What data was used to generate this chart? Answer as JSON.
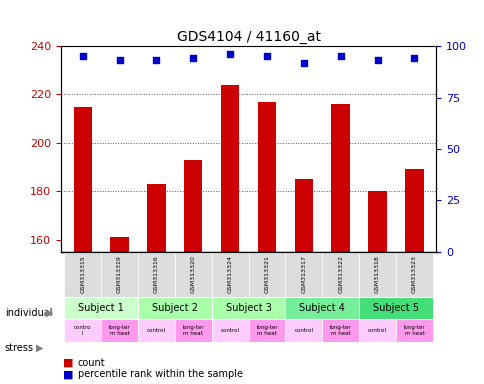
{
  "title": "GDS4104 / 41160_at",
  "samples": [
    "GSM313315",
    "GSM313319",
    "GSM313316",
    "GSM313320",
    "GSM313324",
    "GSM313321",
    "GSM313317",
    "GSM313322",
    "GSM313318",
    "GSM313323"
  ],
  "counts": [
    215,
    161,
    183,
    193,
    224,
    217,
    185,
    216,
    180,
    189
  ],
  "percentile_ranks": [
    95,
    93,
    93,
    94,
    96,
    95,
    92,
    95,
    93,
    94
  ],
  "ylim_left": [
    155,
    240
  ],
  "yticks_left": [
    160,
    180,
    200,
    220,
    240
  ],
  "ylim_right": [
    0,
    100
  ],
  "yticks_right": [
    0,
    25,
    50,
    75,
    100
  ],
  "bar_color": "#cc0000",
  "dot_color": "#0000cc",
  "bar_width": 0.5,
  "subjects": [
    {
      "label": "Subject 1",
      "cols": [
        0,
        1
      ],
      "color": "#ccffcc"
    },
    {
      "label": "Subject 2",
      "cols": [
        2,
        3
      ],
      "color": "#99ff99"
    },
    {
      "label": "Subject 3",
      "cols": [
        4,
        5
      ],
      "color": "#99ff99"
    },
    {
      "label": "Subject 4",
      "cols": [
        6,
        7
      ],
      "color": "#66ee88"
    },
    {
      "label": "Subject 5",
      "cols": [
        8,
        9
      ],
      "color": "#55dd77"
    }
  ],
  "stress_labels": [
    "contro\nl",
    "long-ter\nm heat",
    "control",
    "long-ter\nm heat",
    "control",
    "long-ter\nm heat",
    "control",
    "long-ter\nm heat",
    "control",
    "long-ter\nm heat"
  ],
  "stress_colors": [
    "#ffaaff",
    "#ff88ff",
    "#ffaaff",
    "#ff88ff",
    "#ffaaff",
    "#ff88ff",
    "#ffaaff",
    "#ff88ff",
    "#ffaaff",
    "#ff88ff"
  ],
  "dotted_grid_color": "#555555",
  "background_color": "#ffffff",
  "legend_count_color": "#cc0000",
  "legend_dot_color": "#0000cc"
}
